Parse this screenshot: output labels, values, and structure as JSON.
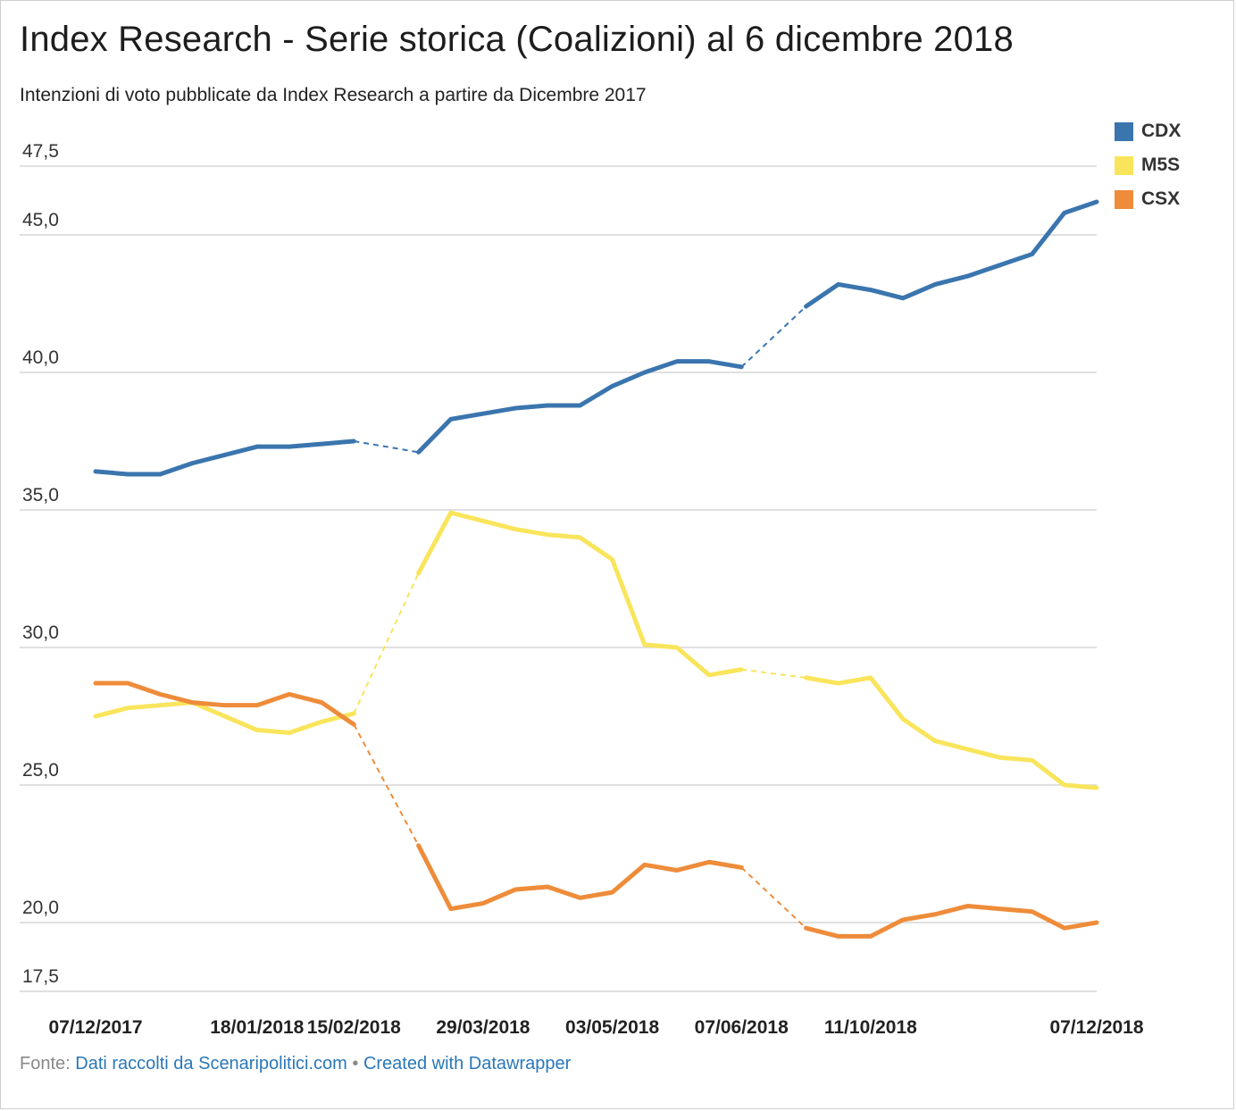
{
  "title": "Index Research - Serie storica (Coalizioni) al 6 dicembre 2018",
  "subtitle": "Intenzioni di voto pubblicate da Index Research a partire da Dicembre 2017",
  "footer": {
    "prefix": "Fonte: ",
    "source": "Dati raccolti da Scenaripolitici.com",
    "separator": " • ",
    "credit": "Created with Datawrapper"
  },
  "chart_data": {
    "type": "line",
    "ylim": [
      17.5,
      47.5
    ],
    "ytick_values": [
      17.5,
      20,
      25,
      30,
      35,
      40,
      45,
      47.5
    ],
    "ytick_labels": [
      "17,5",
      "20,0",
      "25,0",
      "30,0",
      "35,0",
      "40,0",
      "45,0",
      "47,5"
    ],
    "xtick_labels": [
      "07/12/2017",
      "18/01/2018",
      "15/02/2018",
      "29/03/2018",
      "03/05/2018",
      "07/06/2018",
      "11/10/2018",
      "07/12/2018"
    ],
    "xtick_index": [
      0,
      5,
      8,
      12,
      16,
      20,
      24,
      31
    ],
    "grid": true,
    "legend_position": "top-right",
    "gaps_dashed": [
      [
        8,
        10
      ],
      [
        20,
        22
      ]
    ],
    "series": [
      {
        "name": "CDX",
        "color": "#3a75ae",
        "values": [
          36.4,
          36.3,
          36.3,
          36.7,
          37.0,
          37.3,
          37.3,
          37.4,
          37.5,
          null,
          37.1,
          38.3,
          38.5,
          38.7,
          38.8,
          38.8,
          39.5,
          40.0,
          40.4,
          40.4,
          40.2,
          null,
          42.4,
          43.2,
          43.0,
          42.7,
          43.2,
          43.5,
          43.9,
          44.3,
          45.8,
          46.2
        ]
      },
      {
        "name": "M5S",
        "color": "#f9e55c",
        "values": [
          27.5,
          27.8,
          27.9,
          28.0,
          27.5,
          27.0,
          26.9,
          27.3,
          27.6,
          null,
          32.7,
          34.9,
          34.6,
          34.3,
          34.1,
          34.0,
          33.2,
          30.1,
          30.0,
          29.0,
          29.2,
          null,
          28.9,
          28.7,
          28.9,
          27.4,
          26.6,
          26.3,
          26.0,
          25.9,
          25.0,
          24.9
        ]
      },
      {
        "name": "CSX",
        "color": "#ee8c3a",
        "values": [
          28.7,
          28.7,
          28.3,
          28.0,
          27.9,
          27.9,
          28.3,
          28.0,
          27.2,
          null,
          22.8,
          20.5,
          20.7,
          21.2,
          21.3,
          20.9,
          21.1,
          22.1,
          21.9,
          22.2,
          22.0,
          null,
          19.8,
          19.5,
          19.5,
          20.1,
          20.3,
          20.6,
          20.5,
          20.4,
          19.8,
          20.0
        ]
      }
    ]
  }
}
